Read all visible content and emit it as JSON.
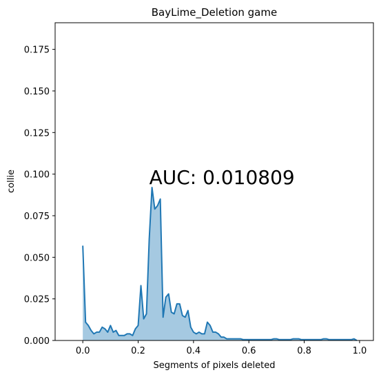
{
  "chart_data": {
    "type": "area",
    "title": "BayLime_Deletion game",
    "xlabel": "Segments of pixels deleted",
    "ylabel": "collie",
    "xlim": [
      -0.1,
      1.05
    ],
    "ylim": [
      0,
      0.191
    ],
    "xticks": [
      "0.0",
      "0.2",
      "0.4",
      "0.6",
      "0.8",
      "1.0"
    ],
    "yticks": [
      "0.000",
      "0.025",
      "0.050",
      "0.075",
      "0.100",
      "0.125",
      "0.150",
      "0.175"
    ],
    "annotation": "AUC: 0.010809",
    "grid": false,
    "colors": {
      "line": "#1f77b4",
      "fill": "#1f77b4"
    },
    "series": [
      {
        "x": [
          0.0,
          0.01,
          0.02,
          0.03,
          0.04,
          0.05,
          0.06,
          0.07,
          0.08,
          0.09,
          0.1,
          0.11,
          0.12,
          0.13,
          0.14,
          0.15,
          0.16,
          0.17,
          0.18,
          0.19,
          0.2,
          0.21,
          0.22,
          0.23,
          0.24,
          0.25,
          0.26,
          0.27,
          0.28,
          0.29,
          0.3,
          0.31,
          0.32,
          0.33,
          0.34,
          0.35,
          0.36,
          0.37,
          0.38,
          0.39,
          0.4,
          0.41,
          0.42,
          0.43,
          0.44,
          0.45,
          0.46,
          0.47,
          0.48,
          0.49,
          0.5,
          0.51,
          0.52,
          0.53,
          0.54,
          0.55,
          0.56,
          0.57,
          0.58,
          0.59,
          0.6,
          0.61,
          0.62,
          0.63,
          0.64,
          0.65,
          0.66,
          0.67,
          0.68,
          0.69,
          0.7,
          0.71,
          0.72,
          0.73,
          0.74,
          0.75,
          0.76,
          0.77,
          0.78,
          0.79,
          0.8,
          0.81,
          0.82,
          0.83,
          0.84,
          0.85,
          0.86,
          0.87,
          0.88,
          0.89,
          0.9,
          0.91,
          0.92,
          0.93,
          0.94,
          0.95,
          0.96,
          0.97,
          0.98,
          0.99
        ],
        "y": [
          0.057,
          0.011,
          0.009,
          0.006,
          0.004,
          0.005,
          0.005,
          0.008,
          0.007,
          0.005,
          0.009,
          0.005,
          0.006,
          0.003,
          0.003,
          0.003,
          0.004,
          0.004,
          0.003,
          0.007,
          0.009,
          0.033,
          0.013,
          0.016,
          0.061,
          0.092,
          0.079,
          0.081,
          0.085,
          0.014,
          0.026,
          0.028,
          0.017,
          0.016,
          0.022,
          0.022,
          0.015,
          0.014,
          0.018,
          0.008,
          0.005,
          0.004,
          0.005,
          0.004,
          0.004,
          0.011,
          0.009,
          0.005,
          0.005,
          0.004,
          0.002,
          0.002,
          0.001,
          0.001,
          0.001,
          0.001,
          0.001,
          0.001,
          0.0005,
          0.0005,
          0.0005,
          0.0005,
          0.0005,
          0.0005,
          0.0005,
          0.0005,
          0.0005,
          0.0005,
          0.0005,
          0.001,
          0.001,
          0.0005,
          0.0005,
          0.0005,
          0.0005,
          0.0005,
          0.001,
          0.001,
          0.001,
          0.0005,
          0.0005,
          0.0005,
          0.0005,
          0.0005,
          0.0005,
          0.0005,
          0.0005,
          0.001,
          0.001,
          0.0005,
          0.0005,
          0.0005,
          0.0005,
          0.0005,
          0.0005,
          0.0005,
          0.0005,
          0.0005,
          0.001,
          0.0
        ]
      }
    ]
  }
}
